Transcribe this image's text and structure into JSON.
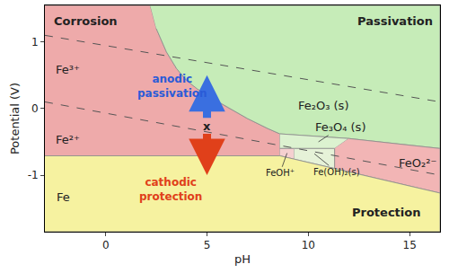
{
  "chart_data": {
    "type": "pourbaix",
    "x_label": "pH",
    "y_label": "Potential (V)",
    "xlim": [
      -3,
      16.5
    ],
    "ylim": [
      -1.85,
      1.55
    ],
    "xticks": [
      0,
      5,
      10,
      15
    ],
    "yticks": [
      -1,
      0,
      1
    ],
    "grid": false,
    "regions": [
      {
        "color": "#eeaaaa",
        "x": [
          -3,
          2.2,
          2.5,
          3,
          3.5,
          4,
          4.5,
          5,
          6,
          7,
          8,
          8.6,
          8.6,
          -3
        ],
        "y": [
          1.55,
          1.55,
          1.2,
          0.85,
          0.6,
          0.42,
          0.3,
          0.2,
          0.02,
          -0.15,
          -0.3,
          -0.38,
          -0.71,
          -0.71
        ]
      },
      {
        "color": "#c6ecb8",
        "x": [
          2.2,
          16.5,
          16.5,
          12,
          8.6,
          8,
          7,
          6,
          5,
          4.5,
          4,
          3.5,
          3,
          2.5
        ],
        "y": [
          1.55,
          1.55,
          -0.6,
          -0.45,
          -0.38,
          -0.3,
          -0.15,
          0.02,
          0.2,
          0.3,
          0.42,
          0.6,
          0.85,
          1.2
        ]
      },
      {
        "color": "#dcf2d0",
        "x": [
          8.6,
          12,
          11.3,
          8.6
        ],
        "y": [
          -0.38,
          -0.45,
          -0.6,
          -0.6
        ]
      },
      {
        "color": "#f5d0d0",
        "x": [
          8.6,
          9.3,
          9.3,
          8.6
        ],
        "y": [
          -0.6,
          -0.6,
          -0.76,
          -0.71
        ]
      },
      {
        "color": "#e6f2d8",
        "x": [
          9.3,
          11.3,
          11.3,
          9.3
        ],
        "y": [
          -0.6,
          -0.6,
          -0.9,
          -0.76
        ]
      },
      {
        "color": "#f2b5b5",
        "x": [
          12,
          16.5,
          16.5,
          11.3,
          11.3
        ],
        "y": [
          -0.45,
          -0.6,
          -1.27,
          -0.9,
          -0.6
        ]
      },
      {
        "color": "#f6f2a0",
        "x": [
          -3,
          8.6,
          9.3,
          16.5,
          16.5,
          -3
        ],
        "y": [
          -0.71,
          -0.71,
          -0.76,
          -1.27,
          -1.85,
          -1.85
        ]
      }
    ],
    "lines": [
      {
        "line_style": "dashed",
        "color": "#555555",
        "x": [
          -3,
          16.5
        ],
        "y": [
          1.1,
          0.1
        ]
      },
      {
        "line_style": "dashed",
        "color": "#555555",
        "x": [
          -3,
          16.5
        ],
        "y": [
          0.1,
          -1.0
        ]
      }
    ],
    "labels": [
      {
        "text": "Corrosion",
        "x": -1.0,
        "y": 1.32,
        "bold": true,
        "color": "#222222"
      },
      {
        "text": "Passivation",
        "x": 14.3,
        "y": 1.32,
        "bold": true,
        "color": "#222222"
      },
      {
        "text": "Protection",
        "x": 13.85,
        "y": -1.56,
        "bold": true,
        "color": "#222222"
      },
      {
        "text": "Fe³⁺",
        "x": -1.86,
        "y": 0.59,
        "color": "#222222"
      },
      {
        "text": "Fe²⁺",
        "x": -1.86,
        "y": -0.47,
        "color": "#222222"
      },
      {
        "text": "Fe",
        "x": -2.1,
        "y": -1.33,
        "color": "#222222"
      },
      {
        "text": "Fe₂O₃ (s)",
        "x": 10.75,
        "y": 0.04,
        "color": "#222222"
      },
      {
        "text": "Fe₃O₄ (s)",
        "x": 11.6,
        "y": -0.28,
        "color": "#222222",
        "arrow_to": [
          10.5,
          -0.5
        ]
      },
      {
        "text": "FeOH⁺",
        "x": 8.6,
        "y": -0.97,
        "color": "#222222",
        "small": true,
        "arrow_to": [
          8.95,
          -0.67
        ]
      },
      {
        "text": "Fe(OH)₂(s)",
        "x": 11.4,
        "y": -0.95,
        "color": "#222222",
        "small": true,
        "arrow_to": [
          10.3,
          -0.68
        ]
      },
      {
        "text": "FeO₂²⁻",
        "x": 15.4,
        "y": -0.82,
        "color": "#222222"
      },
      {
        "text": "x",
        "x": 5,
        "y": -0.26,
        "color": "#222222",
        "bold": true
      },
      {
        "lines": [
          "anodic",
          "passivation"
        ],
        "x": 3.3,
        "y": 0.33,
        "color": "#2a5bd7",
        "bold": true
      },
      {
        "lines": [
          "cathodic",
          "protection"
        ],
        "x": 3.2,
        "y": -1.22,
        "color": "#e0401a",
        "bold": true
      }
    ],
    "arrows": [
      {
        "from": [
          5,
          -0.16
        ],
        "to": [
          5,
          0.5
        ],
        "color": "#3a6fe0"
      },
      {
        "from": [
          5,
          -0.36
        ],
        "to": [
          5,
          -1.0
        ],
        "color": "#e0401a"
      }
    ]
  }
}
